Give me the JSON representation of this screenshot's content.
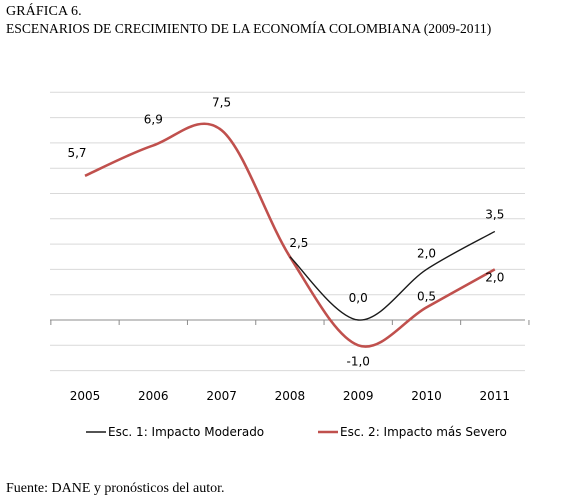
{
  "figure": {
    "label": "GRÁFICA 6.",
    "title": "ESCENARIOS DE CRECIMIENTO DE LA ECONOMÍA COLOMBIANA (2009-2011)",
    "source": "Fuente: DANE y pronósticos del autor."
  },
  "chart_data": {
    "type": "line",
    "categories": [
      "2005",
      "2006",
      "2007",
      "2008",
      "2009",
      "2010",
      "2011"
    ],
    "series": [
      {
        "name": "Esc. 1: Impacto Moderado",
        "color": "#1a1a1a",
        "values": [
          5.7,
          6.9,
          7.5,
          2.5,
          0.0,
          2.0,
          3.5
        ],
        "labels": [
          "5,7",
          "6,9",
          "7,5",
          "2,5",
          "0,0",
          "2,0",
          "3,5"
        ]
      },
      {
        "name": "Esc. 2: Impacto más Severo",
        "color": "#c0504d",
        "values": [
          5.7,
          6.9,
          7.5,
          2.5,
          -1.0,
          0.5,
          2.0
        ],
        "labels": [
          "",
          "",
          "",
          "",
          "-1,0",
          "0,5",
          "2,0"
        ]
      }
    ],
    "ylim": [
      -2,
      9
    ],
    "grid": true,
    "legend_position": "bottom"
  }
}
